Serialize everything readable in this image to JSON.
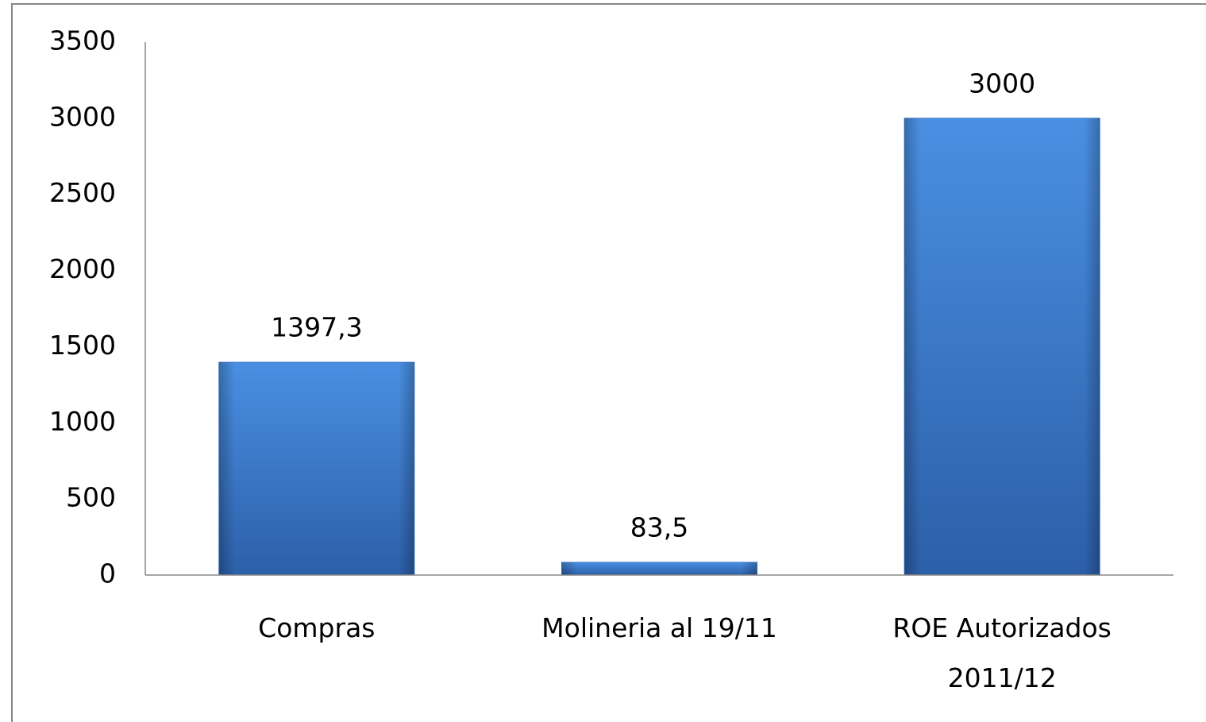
{
  "chart_data": {
    "type": "bar",
    "categories": [
      "Compras",
      "Molineria al 19/11",
      "ROE Autorizados 2011/12"
    ],
    "values": [
      1397.3,
      83.5,
      3000
    ],
    "value_labels": [
      "1397,3",
      "83,5",
      "3000"
    ],
    "color": "#3a75c4",
    "ylim": [
      0,
      3500
    ],
    "yticks": [
      0,
      500,
      1000,
      1500,
      2000,
      2500,
      3000,
      3500
    ],
    "grid": false
  }
}
